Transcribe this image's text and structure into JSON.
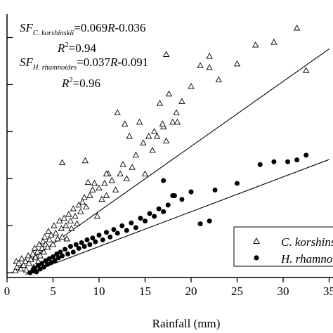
{
  "chart_data": {
    "type": "scatter",
    "title": "",
    "xlabel": "Rainfall (mm)",
    "ylabel": "",
    "xlim": [
      0,
      35
    ],
    "ylim": [
      -0.05,
      2.75
    ],
    "x_ticks": [
      0,
      5,
      10,
      15,
      20,
      25,
      30,
      35
    ],
    "x_tick_labels": [
      "0",
      "5",
      "10",
      "15",
      "20",
      "25",
      "30",
      "35"
    ],
    "y_ticks": [
      0,
      0.5,
      1.0,
      1.5,
      2.0,
      2.5
    ],
    "grid": false,
    "legend_position": "bottom-right",
    "equations": [
      {
        "prefix": "SF",
        "subscript": "C. korshinskii",
        "rhs_parts": [
          {
            "text": "=0.069",
            "italic": false
          },
          {
            "text": "R",
            "italic": true
          },
          {
            "text": "-0.036",
            "italic": false
          }
        ],
        "r2_symbol": "R",
        "r2_exp": "2",
        "r2_value": "=0.94"
      },
      {
        "prefix": "SF",
        "subscript": "H. rhamnoides",
        "rhs_parts": [
          {
            "text": "=0.037",
            "italic": false
          },
          {
            "text": "R",
            "italic": true
          },
          {
            "text": "-0.091",
            "italic": false
          }
        ],
        "r2_symbol": "R",
        "r2_exp": "2",
        "r2_value": "=0.96"
      }
    ],
    "series": [
      {
        "name": "C. korshinskii",
        "marker": "open-triangle",
        "fit": {
          "slope": 0.069,
          "intercept": -0.036,
          "x_range": [
            0.5,
            35
          ]
        },
        "points": [
          [
            0.9,
            0.02
          ],
          [
            1.1,
            0.06
          ],
          [
            1.0,
            0.12
          ],
          [
            1.3,
            0.1
          ],
          [
            1.5,
            0.04
          ],
          [
            1.6,
            0.15
          ],
          [
            1.8,
            0.08
          ],
          [
            2.0,
            0.12
          ],
          [
            2.1,
            0.03
          ],
          [
            2.3,
            0.18
          ],
          [
            2.4,
            0.1
          ],
          [
            2.6,
            0.14
          ],
          [
            2.8,
            0.2
          ],
          [
            2.9,
            0.06
          ],
          [
            3.0,
            0.26
          ],
          [
            3.1,
            0.16
          ],
          [
            3.3,
            0.22
          ],
          [
            3.4,
            0.12
          ],
          [
            3.5,
            0.3
          ],
          [
            3.6,
            0.18
          ],
          [
            3.8,
            0.26
          ],
          [
            3.9,
            0.33
          ],
          [
            4.0,
            0.22
          ],
          [
            4.1,
            0.38
          ],
          [
            4.2,
            0.3
          ],
          [
            4.4,
            0.27
          ],
          [
            4.5,
            0.44
          ],
          [
            4.6,
            0.35
          ],
          [
            4.8,
            0.4
          ],
          [
            5.0,
            0.3
          ],
          [
            5.1,
            0.5
          ],
          [
            5.3,
            0.42
          ],
          [
            5.5,
            0.36
          ],
          [
            5.7,
            0.55
          ],
          [
            5.9,
            0.47
          ],
          [
            6.0,
            0.38
          ],
          [
            6.2,
            0.58
          ],
          [
            6.4,
            0.5
          ],
          [
            6.5,
            0.36
          ],
          [
            6.7,
            0.62
          ],
          [
            6.9,
            0.55
          ],
          [
            7.0,
            0.47
          ],
          [
            7.2,
            0.68
          ],
          [
            7.4,
            0.6
          ],
          [
            7.6,
            0.52
          ],
          [
            7.8,
            0.72
          ],
          [
            8.0,
            0.65
          ],
          [
            8.2,
            0.75
          ],
          [
            8.4,
            0.8
          ],
          [
            8.6,
            0.7
          ],
          [
            8.8,
            0.96
          ],
          [
            9.0,
            0.82
          ],
          [
            9.3,
            0.88
          ],
          [
            9.5,
            0.95
          ],
          [
            9.8,
            0.6
          ],
          [
            10.0,
            0.9
          ],
          [
            10.3,
            0.78
          ],
          [
            10.6,
            0.95
          ],
          [
            10.8,
            0.82
          ],
          [
            11.0,
            1.05
          ],
          [
            11.4,
            0.98
          ],
          [
            11.8,
            0.88
          ],
          [
            12.0,
            1.7
          ],
          [
            12.3,
            1.05
          ],
          [
            12.6,
            1.15
          ],
          [
            13.0,
            1.0
          ],
          [
            13.3,
            1.45
          ],
          [
            13.6,
            1.12
          ],
          [
            14.0,
            1.25
          ],
          [
            14.4,
            1.6
          ],
          [
            14.8,
            1.38
          ],
          [
            15.0,
            1.05
          ],
          [
            15.4,
            1.45
          ],
          [
            15.8,
            1.3
          ],
          [
            16.0,
            1.5
          ],
          [
            16.3,
            1.45
          ],
          [
            16.6,
            1.8
          ],
          [
            17.0,
            1.55
          ],
          [
            17.3,
            1.4
          ],
          [
            17.6,
            1.9
          ],
          [
            18.0,
            1.6
          ],
          [
            18.4,
            1.7
          ],
          [
            19.0,
            1.82
          ],
          [
            20.0,
            1.98
          ],
          [
            21.0,
            2.2
          ],
          [
            22.0,
            2.18
          ],
          [
            23.0,
            2.05
          ],
          [
            25.0,
            2.22
          ],
          [
            27.0,
            2.42
          ],
          [
            29.0,
            2.45
          ],
          [
            31.5,
            2.6
          ],
          [
            32.5,
            2.15
          ],
          [
            6.0,
            1.17
          ],
          [
            8.5,
            1.19
          ],
          [
            10.8,
            1.05
          ],
          [
            12.8,
            1.58
          ],
          [
            16.9,
            1.58
          ],
          [
            17.3,
            2.32
          ],
          [
            18.5,
            1.6
          ],
          [
            22.0,
            2.3
          ]
        ]
      },
      {
        "name": "H. rhamnoides",
        "marker": "filled-circle",
        "fit": {
          "slope": 0.037,
          "intercept": -0.091,
          "x_range": [
            2.0,
            35
          ]
        },
        "points": [
          [
            2.5,
            0.0
          ],
          [
            2.8,
            0.02
          ],
          [
            3.0,
            0.05
          ],
          [
            3.2,
            0.01
          ],
          [
            3.4,
            0.08
          ],
          [
            3.6,
            0.04
          ],
          [
            3.8,
            0.1
          ],
          [
            4.0,
            0.06
          ],
          [
            4.2,
            0.13
          ],
          [
            4.4,
            0.09
          ],
          [
            4.6,
            0.15
          ],
          [
            4.8,
            0.11
          ],
          [
            5.0,
            0.17
          ],
          [
            5.2,
            0.13
          ],
          [
            5.4,
            0.2
          ],
          [
            5.6,
            0.16
          ],
          [
            5.8,
            0.22
          ],
          [
            6.0,
            0.18
          ],
          [
            6.3,
            0.25
          ],
          [
            6.6,
            0.2
          ],
          [
            6.9,
            0.28
          ],
          [
            7.2,
            0.22
          ],
          [
            7.5,
            0.3
          ],
          [
            7.8,
            0.26
          ],
          [
            8.1,
            0.32
          ],
          [
            8.4,
            0.28
          ],
          [
            8.7,
            0.35
          ],
          [
            9.0,
            0.3
          ],
          [
            9.3,
            0.37
          ],
          [
            9.6,
            0.33
          ],
          [
            10.0,
            0.4
          ],
          [
            10.4,
            0.35
          ],
          [
            10.8,
            0.43
          ],
          [
            11.2,
            0.38
          ],
          [
            11.6,
            0.46
          ],
          [
            12.0,
            0.42
          ],
          [
            12.5,
            0.5
          ],
          [
            13.0,
            0.45
          ],
          [
            13.5,
            0.53
          ],
          [
            14.0,
            0.48
          ],
          [
            14.5,
            0.58
          ],
          [
            15.0,
            0.55
          ],
          [
            15.5,
            0.63
          ],
          [
            16.0,
            0.6
          ],
          [
            16.5,
            0.68
          ],
          [
            17.0,
            0.65
          ],
          [
            17.5,
            0.72
          ],
          [
            18.0,
            0.82
          ],
          [
            19.0,
            0.78
          ],
          [
            20.0,
            0.86
          ],
          [
            21.0,
            0.52
          ],
          [
            22.0,
            0.55
          ],
          [
            22.6,
            0.88
          ],
          [
            25.0,
            0.95
          ],
          [
            27.5,
            1.15
          ],
          [
            29.0,
            1.18
          ],
          [
            30.5,
            1.18
          ],
          [
            31.5,
            1.2
          ],
          [
            32.5,
            1.25
          ],
          [
            17.0,
            0.98
          ],
          [
            18.2,
            0.82
          ]
        ]
      }
    ]
  }
}
